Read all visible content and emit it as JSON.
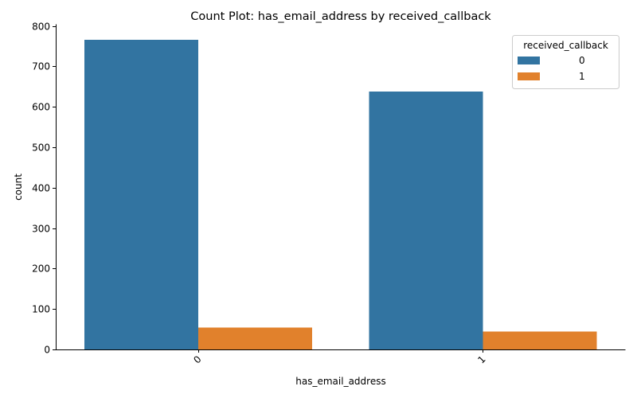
{
  "chart_data": {
    "type": "bar",
    "title": "Count Plot: has_email_address by received_callback",
    "xlabel": "has_email_address",
    "ylabel": "count",
    "categories": [
      "0",
      "1"
    ],
    "ylim": [
      0,
      805
    ],
    "yticks": [
      0,
      100,
      200,
      300,
      400,
      500,
      600,
      700,
      800
    ],
    "legend": {
      "title": "received_callback",
      "position": "top-right"
    },
    "series": [
      {
        "name": "0",
        "color": "#3274a1",
        "values": [
          766,
          638
        ]
      },
      {
        "name": "1",
        "color": "#e1812c",
        "values": [
          54,
          44
        ]
      }
    ],
    "grid": false
  }
}
